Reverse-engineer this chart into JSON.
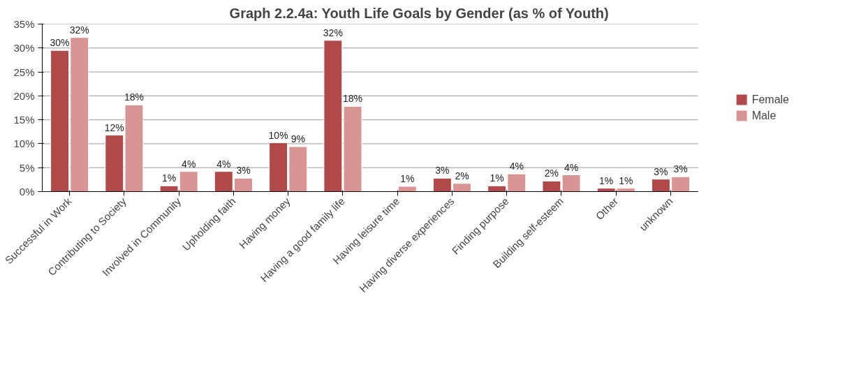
{
  "chart_data": {
    "type": "bar",
    "title": "Graph 2.2.4a: Youth Life Goals by Gender (as % of Youth)",
    "categories": [
      "Successful in Work",
      "Contributing to Society",
      "Involved in Community",
      "Upholding faith",
      "Having money",
      "Having a good family life",
      "Having leisure time",
      "Having diverse experiences",
      "Finding purpose",
      "Building self-esteem",
      "Other",
      "unknown"
    ],
    "series": [
      {
        "name": "Female",
        "color": "#b04a4a",
        "values": [
          29.5,
          11.8,
          1.2,
          4.2,
          10.2,
          31.6,
          null,
          2.8,
          1.2,
          2.2,
          0.7,
          2.6
        ],
        "value_labels": [
          "30%",
          "12%",
          "1%",
          "4%",
          "10%",
          "32%",
          null,
          "3%",
          "1%",
          "2%",
          "1%",
          "3%"
        ]
      },
      {
        "name": "Male",
        "color": "#d99594",
        "values": [
          32.2,
          18.1,
          4.2,
          2.8,
          9.4,
          17.8,
          1.1,
          1.7,
          3.7,
          3.5,
          0.7,
          3.1
        ],
        "value_labels": [
          "32%",
          "18%",
          "4%",
          "3%",
          "9%",
          "18%",
          "1%",
          "2%",
          "4%",
          "4%",
          "1%",
          "3%"
        ]
      }
    ],
    "ylim": [
      0,
      35
    ],
    "yticks": [
      {
        "value": 0,
        "label": "0%"
      },
      {
        "value": 5,
        "label": "5%"
      },
      {
        "value": 10,
        "label": "10%"
      },
      {
        "value": 15,
        "label": "15%"
      },
      {
        "value": 20,
        "label": "20%"
      },
      {
        "value": 25,
        "label": "25%"
      },
      {
        "value": 30,
        "label": "30%"
      },
      {
        "value": 35,
        "label": "35%"
      }
    ],
    "grid": "y",
    "legend": "right"
  }
}
